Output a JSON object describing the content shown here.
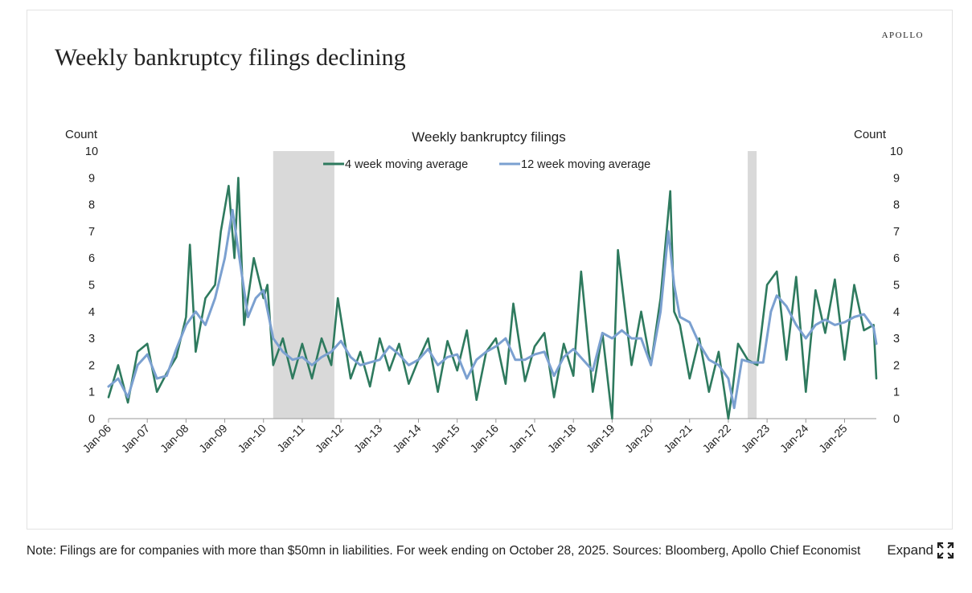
{
  "brand": "APOLLO",
  "title": "Weekly bankruptcy filings declining",
  "note": "Note: Filings are for companies with more than $50mn in liabilities. For week ending on October 28, 2025. Sources: Bloomberg, Apollo Chief Economist",
  "expand_label": "Expand",
  "chart_data": {
    "type": "line",
    "title": "Weekly bankruptcy filings",
    "ylabel_left": "Count",
    "ylabel_right": "Count",
    "ylim": [
      0,
      10
    ],
    "yticks": [
      0,
      1,
      2,
      3,
      4,
      5,
      6,
      7,
      8,
      9,
      10
    ],
    "x_range": [
      2006.0,
      2025.82
    ],
    "xticks": [
      {
        "label": "Jan-06",
        "x": 2006
      },
      {
        "label": "Jan-07",
        "x": 2007
      },
      {
        "label": "Jan-08",
        "x": 2008
      },
      {
        "label": "Jan-09",
        "x": 2009
      },
      {
        "label": "Jan-10",
        "x": 2010
      },
      {
        "label": "Jan-11",
        "x": 2011
      },
      {
        "label": "Jan-12",
        "x": 2012
      },
      {
        "label": "Jan-13",
        "x": 2013
      },
      {
        "label": "Jan-14",
        "x": 2014
      },
      {
        "label": "Jan-15",
        "x": 2015
      },
      {
        "label": "Jan-16",
        "x": 2016
      },
      {
        "label": "Jan-17",
        "x": 2017
      },
      {
        "label": "Jan-18",
        "x": 2018
      },
      {
        "label": "Jan-19",
        "x": 2019
      },
      {
        "label": "Jan-20",
        "x": 2020
      },
      {
        "label": "Jan-21",
        "x": 2021
      },
      {
        "label": "Jan-22",
        "x": 2022
      },
      {
        "label": "Jan-23",
        "x": 2023
      },
      {
        "label": "Jan-24",
        "x": 2024
      },
      {
        "label": "Jan-25",
        "x": 2025
      }
    ],
    "shaded_periods": [
      [
        2010.25,
        2011.83
      ],
      [
        2022.5,
        2022.73
      ]
    ],
    "legend": "top-center",
    "series": [
      {
        "name": "4 week moving average",
        "color": "#2e7a5e",
        "x": [
          2006.0,
          2006.25,
          2006.5,
          2006.75,
          2007.0,
          2007.25,
          2007.5,
          2007.75,
          2008.0,
          2008.1,
          2008.25,
          2008.5,
          2008.75,
          2008.9,
          2009.1,
          2009.25,
          2009.35,
          2009.5,
          2009.75,
          2010.0,
          2010.1,
          2010.25,
          2010.5,
          2010.75,
          2011.0,
          2011.25,
          2011.5,
          2011.75,
          2011.92,
          2012.25,
          2012.5,
          2012.75,
          2013.0,
          2013.25,
          2013.5,
          2013.75,
          2014.0,
          2014.25,
          2014.5,
          2014.75,
          2015.0,
          2015.25,
          2015.5,
          2015.75,
          2016.0,
          2016.25,
          2016.45,
          2016.75,
          2017.0,
          2017.25,
          2017.5,
          2017.75,
          2018.0,
          2018.2,
          2018.5,
          2018.75,
          2019.0,
          2019.15,
          2019.5,
          2019.75,
          2020.0,
          2020.25,
          2020.5,
          2020.6,
          2020.75,
          2021.0,
          2021.25,
          2021.5,
          2021.75,
          2022.0,
          2022.1,
          2022.25,
          2022.5,
          2022.75,
          2023.0,
          2023.25,
          2023.5,
          2023.75,
          2024.0,
          2024.25,
          2024.5,
          2024.75,
          2025.0,
          2025.25,
          2025.5,
          2025.75,
          2025.82
        ],
        "values": [
          0.8,
          2.0,
          0.6,
          2.5,
          2.8,
          1.0,
          1.7,
          2.3,
          3.8,
          6.5,
          2.5,
          4.5,
          5.0,
          7.0,
          8.7,
          6.0,
          9.0,
          3.5,
          6.0,
          4.5,
          5.0,
          2.0,
          3.0,
          1.5,
          2.8,
          1.5,
          3.0,
          2.0,
          4.5,
          1.5,
          2.5,
          1.2,
          3.0,
          1.8,
          2.8,
          1.3,
          2.2,
          3.0,
          1.0,
          2.9,
          1.8,
          3.3,
          0.7,
          2.5,
          3.0,
          1.3,
          4.3,
          1.4,
          2.7,
          3.2,
          0.8,
          2.8,
          1.6,
          5.5,
          1.0,
          3.2,
          0.0,
          6.3,
          2.0,
          4.0,
          2.0,
          4.5,
          8.5,
          4.0,
          3.5,
          1.5,
          3.0,
          1.0,
          2.5,
          0.0,
          1.0,
          2.8,
          2.2,
          2.0,
          5.0,
          5.5,
          2.2,
          5.3,
          1.0,
          4.8,
          3.2,
          5.2,
          2.2,
          5.0,
          3.3,
          3.5,
          1.5
        ]
      },
      {
        "name": "12 week moving average",
        "color": "#7ba0d0",
        "x": [
          2006.0,
          2006.25,
          2006.5,
          2006.75,
          2007.0,
          2007.25,
          2007.5,
          2007.75,
          2008.0,
          2008.25,
          2008.5,
          2008.75,
          2009.0,
          2009.2,
          2009.4,
          2009.6,
          2009.8,
          2010.0,
          2010.25,
          2010.5,
          2010.75,
          2011.0,
          2011.25,
          2011.5,
          2011.75,
          2012.0,
          2012.25,
          2012.5,
          2012.75,
          2013.0,
          2013.25,
          2013.5,
          2013.75,
          2014.0,
          2014.25,
          2014.5,
          2014.75,
          2015.0,
          2015.25,
          2015.5,
          2015.75,
          2016.0,
          2016.25,
          2016.5,
          2016.75,
          2017.0,
          2017.25,
          2017.5,
          2017.75,
          2018.0,
          2018.25,
          2018.5,
          2018.75,
          2019.0,
          2019.25,
          2019.5,
          2019.75,
          2020.0,
          2020.25,
          2020.45,
          2020.6,
          2020.75,
          2021.0,
          2021.25,
          2021.5,
          2021.75,
          2022.0,
          2022.15,
          2022.35,
          2022.6,
          2022.9,
          2023.1,
          2023.25,
          2023.5,
          2023.75,
          2024.0,
          2024.25,
          2024.5,
          2024.75,
          2025.0,
          2025.25,
          2025.5,
          2025.75,
          2025.82
        ],
        "values": [
          1.2,
          1.5,
          0.8,
          2.0,
          2.4,
          1.5,
          1.6,
          2.6,
          3.5,
          4.0,
          3.5,
          4.5,
          6.0,
          7.8,
          5.8,
          3.8,
          4.5,
          4.8,
          3.0,
          2.5,
          2.2,
          2.3,
          2.0,
          2.3,
          2.5,
          2.9,
          2.3,
          2.0,
          2.1,
          2.2,
          2.7,
          2.4,
          2.0,
          2.2,
          2.6,
          2.0,
          2.3,
          2.4,
          1.5,
          2.2,
          2.5,
          2.7,
          3.0,
          2.2,
          2.2,
          2.4,
          2.5,
          1.6,
          2.3,
          2.6,
          2.2,
          1.8,
          3.2,
          3.0,
          3.3,
          3.0,
          3.0,
          2.0,
          4.0,
          7.0,
          5.0,
          3.8,
          3.6,
          2.8,
          2.2,
          2.0,
          1.5,
          0.4,
          2.2,
          2.1,
          2.1,
          4.0,
          4.6,
          4.2,
          3.5,
          3.0,
          3.5,
          3.7,
          3.5,
          3.6,
          3.8,
          3.9,
          3.4,
          2.8
        ]
      }
    ]
  }
}
